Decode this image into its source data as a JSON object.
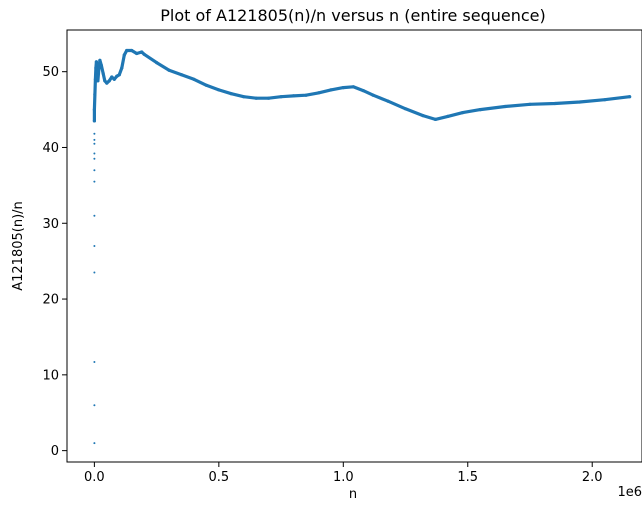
{
  "chart_data": {
    "type": "scatter",
    "title": "Plot of A121805(n)/n versus n (entire sequence)",
    "xlabel": "n",
    "ylabel": "A121805(n)/n",
    "x_offset_label": "1e6",
    "xlim": [
      -0.11,
      2.2
    ],
    "ylim": [
      -1.5,
      55.5
    ],
    "x_ticks": [
      0.0,
      0.5,
      1.0,
      1.5,
      2.0
    ],
    "x_tick_labels": [
      "0.0",
      "0.5",
      "1.0",
      "1.5",
      "2.0"
    ],
    "y_ticks": [
      0,
      10,
      20,
      30,
      40,
      50
    ],
    "y_tick_labels": [
      "0",
      "10",
      "20",
      "30",
      "40",
      "50"
    ],
    "grid": false,
    "legend": "none",
    "marker_color": "#1f77b4",
    "series": [
      {
        "sparse_points": [
          [
            0.0,
            1.0
          ],
          [
            0.0,
            6.0
          ],
          [
            0.0,
            11.7
          ],
          [
            0.0,
            23.5
          ],
          [
            0.0,
            27.0
          ],
          [
            0.0,
            31.0
          ],
          [
            0.0,
            35.5
          ],
          [
            0.0,
            37.0
          ],
          [
            0.0,
            38.5
          ],
          [
            0.0,
            39.2
          ],
          [
            0.0,
            40.5
          ],
          [
            0.0,
            41.0
          ],
          [
            0.0,
            41.8
          ]
        ],
        "curve": [
          [
            0.0,
            43.5
          ],
          [
            0.0,
            45.0
          ],
          [
            0.002,
            47.0
          ],
          [
            0.004,
            49.0
          ],
          [
            0.006,
            50.5
          ],
          [
            0.008,
            51.3
          ],
          [
            0.01,
            50.0
          ],
          [
            0.014,
            48.8
          ],
          [
            0.018,
            50.5
          ],
          [
            0.022,
            51.5
          ],
          [
            0.028,
            50.8
          ],
          [
            0.035,
            49.8
          ],
          [
            0.042,
            48.8
          ],
          [
            0.05,
            48.5
          ],
          [
            0.06,
            48.8
          ],
          [
            0.07,
            49.3
          ],
          [
            0.08,
            49.0
          ],
          [
            0.09,
            49.4
          ],
          [
            0.1,
            49.6
          ],
          [
            0.11,
            50.5
          ],
          [
            0.12,
            52.2
          ],
          [
            0.13,
            52.8
          ],
          [
            0.15,
            52.8
          ],
          [
            0.17,
            52.4
          ],
          [
            0.19,
            52.6
          ],
          [
            0.2,
            52.3
          ],
          [
            0.25,
            51.2
          ],
          [
            0.3,
            50.2
          ],
          [
            0.35,
            49.6
          ],
          [
            0.4,
            49.0
          ],
          [
            0.45,
            48.2
          ],
          [
            0.5,
            47.6
          ],
          [
            0.55,
            47.1
          ],
          [
            0.6,
            46.7
          ],
          [
            0.65,
            46.5
          ],
          [
            0.7,
            46.5
          ],
          [
            0.75,
            46.7
          ],
          [
            0.8,
            46.8
          ],
          [
            0.85,
            46.9
          ],
          [
            0.9,
            47.2
          ],
          [
            0.95,
            47.6
          ],
          [
            1.0,
            47.9
          ],
          [
            1.04,
            48.0
          ],
          [
            1.08,
            47.5
          ],
          [
            1.12,
            46.9
          ],
          [
            1.18,
            46.1
          ],
          [
            1.25,
            45.1
          ],
          [
            1.32,
            44.2
          ],
          [
            1.37,
            43.7
          ],
          [
            1.42,
            44.1
          ],
          [
            1.48,
            44.6
          ],
          [
            1.55,
            45.0
          ],
          [
            1.65,
            45.4
          ],
          [
            1.75,
            45.7
          ],
          [
            1.85,
            45.8
          ],
          [
            1.95,
            46.0
          ],
          [
            2.05,
            46.3
          ],
          [
            2.15,
            46.7
          ]
        ]
      }
    ]
  }
}
